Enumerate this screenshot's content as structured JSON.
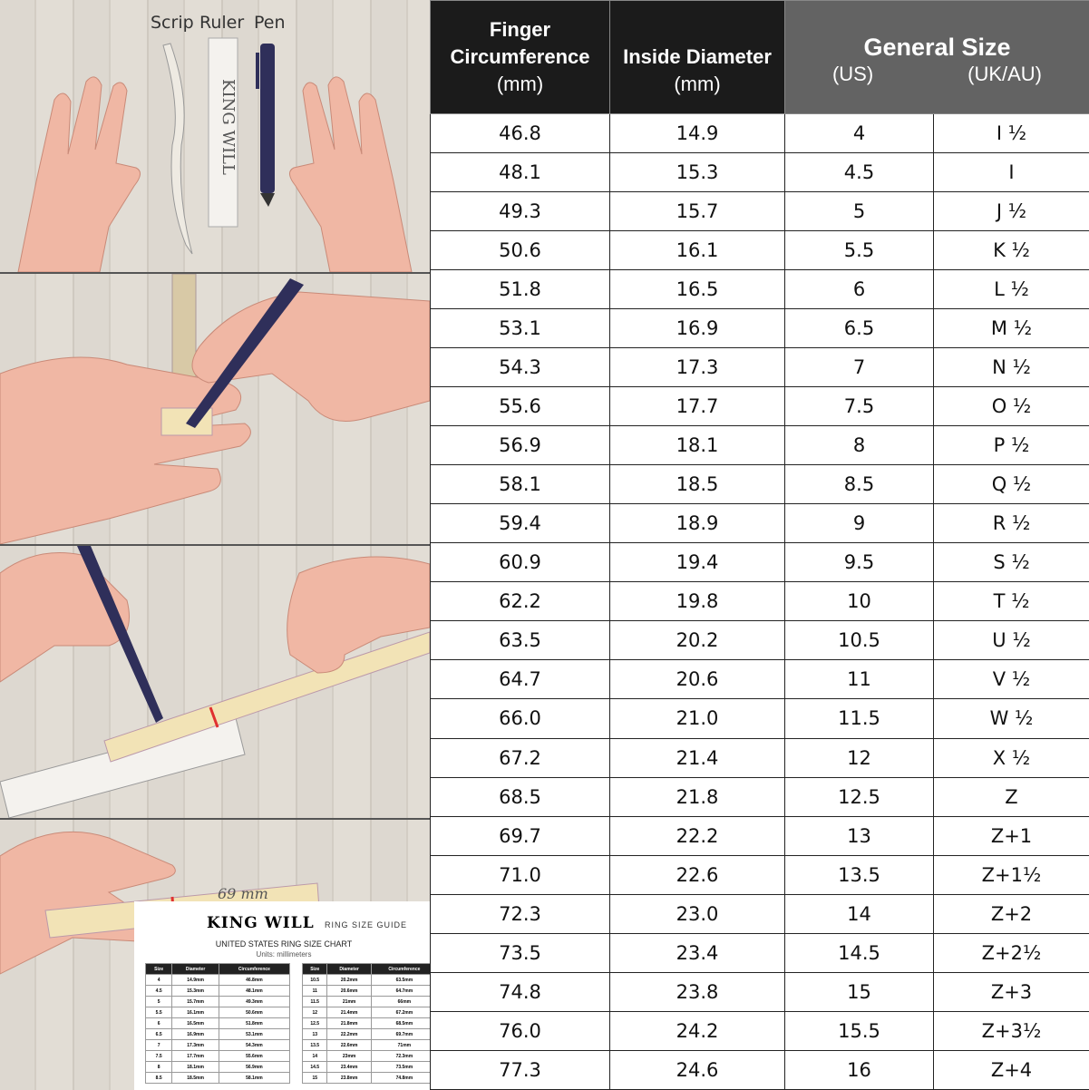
{
  "illustration": {
    "labels": {
      "scrip": "Scrip",
      "ruler": "Ruler",
      "pen": "Pen"
    },
    "brand_on_pen": "KING WILL",
    "strip_mark": "69 mm",
    "guide": {
      "brand": "KING WILL",
      "subtitle": "RING SIZE GUIDE",
      "title": "UNITED STATES RING SIZE CHART",
      "units": "Units: millimeters",
      "headers": [
        "Size",
        "Diameter",
        "Circumference"
      ],
      "left_rows": [
        [
          "4",
          "14.9mm",
          "46.8mm"
        ],
        [
          "4.5",
          "15.3mm",
          "48.1mm"
        ],
        [
          "5",
          "15.7mm",
          "49.3mm"
        ],
        [
          "5.5",
          "16.1mm",
          "50.6mm"
        ],
        [
          "6",
          "16.5mm",
          "51.8mm"
        ],
        [
          "6.5",
          "16.9mm",
          "53.1mm"
        ],
        [
          "7",
          "17.3mm",
          "54.3mm"
        ],
        [
          "7.5",
          "17.7mm",
          "55.6mm"
        ],
        [
          "8",
          "18.1mm",
          "56.9mm"
        ],
        [
          "8.5",
          "18.5mm",
          "58.1mm"
        ]
      ],
      "right_rows": [
        [
          "10.5",
          "20.2mm",
          "63.5mm"
        ],
        [
          "11",
          "20.6mm",
          "64.7mm"
        ],
        [
          "11.5",
          "21mm",
          "66mm"
        ],
        [
          "12",
          "21.4mm",
          "67.2mm"
        ],
        [
          "12.5",
          "21.8mm",
          "68.5mm"
        ],
        [
          "13",
          "22.2mm",
          "69.7mm"
        ],
        [
          "13.5",
          "22.6mm",
          "71mm"
        ],
        [
          "14",
          "23mm",
          "72.3mm"
        ],
        [
          "14.5",
          "23.4mm",
          "73.5mm"
        ],
        [
          "15",
          "23.8mm",
          "74.8mm"
        ]
      ]
    }
  },
  "table": {
    "headers": {
      "circumference": {
        "line1": "Finger",
        "line2": "Circumference",
        "unit": "(mm)"
      },
      "diameter": {
        "line1": "Inside Diameter",
        "unit": "(mm)"
      },
      "general": {
        "title": "General Size",
        "us": "(US)",
        "ukau": "(UK/AU)"
      }
    },
    "rows": [
      [
        "46.8",
        "14.9",
        "4",
        "I ½"
      ],
      [
        "48.1",
        "15.3",
        "4.5",
        "I"
      ],
      [
        "49.3",
        "15.7",
        "5",
        "J ½"
      ],
      [
        "50.6",
        "16.1",
        "5.5",
        "K ½"
      ],
      [
        "51.8",
        "16.5",
        "6",
        "L ½"
      ],
      [
        "53.1",
        "16.9",
        "6.5",
        "M ½"
      ],
      [
        "54.3",
        "17.3",
        "7",
        "N ½"
      ],
      [
        "55.6",
        "17.7",
        "7.5",
        "O ½"
      ],
      [
        "56.9",
        "18.1",
        "8",
        "P ½"
      ],
      [
        "58.1",
        "18.5",
        "8.5",
        "Q ½"
      ],
      [
        "59.4",
        "18.9",
        "9",
        "R ½"
      ],
      [
        "60.9",
        "19.4",
        "9.5",
        "S ½"
      ],
      [
        "62.2",
        "19.8",
        "10",
        "T ½"
      ],
      [
        "63.5",
        "20.2",
        "10.5",
        "U ½"
      ],
      [
        "64.7",
        "20.6",
        "11",
        "V ½"
      ],
      [
        "66.0",
        "21.0",
        "11.5",
        "W ½"
      ],
      [
        "67.2",
        "21.4",
        "12",
        "X ½"
      ],
      [
        "68.5",
        "21.8",
        "12.5",
        "Z"
      ],
      [
        "69.7",
        "22.2",
        "13",
        "Z+1"
      ],
      [
        "71.0",
        "22.6",
        "13.5",
        "Z+1½"
      ],
      [
        "72.3",
        "23.0",
        "14",
        "Z+2"
      ],
      [
        "73.5",
        "23.4",
        "14.5",
        "Z+2½"
      ],
      [
        "74.8",
        "23.8",
        "15",
        "Z+3"
      ],
      [
        "76.0",
        "24.2",
        "15.5",
        "Z+3½"
      ],
      [
        "77.3",
        "24.6",
        "16",
        "Z+4"
      ]
    ]
  },
  "colors": {
    "header_dark": "#1b1b1b",
    "header_grey": "#636363",
    "skin": "#f0b7a4",
    "mark_red": "#e03030"
  }
}
